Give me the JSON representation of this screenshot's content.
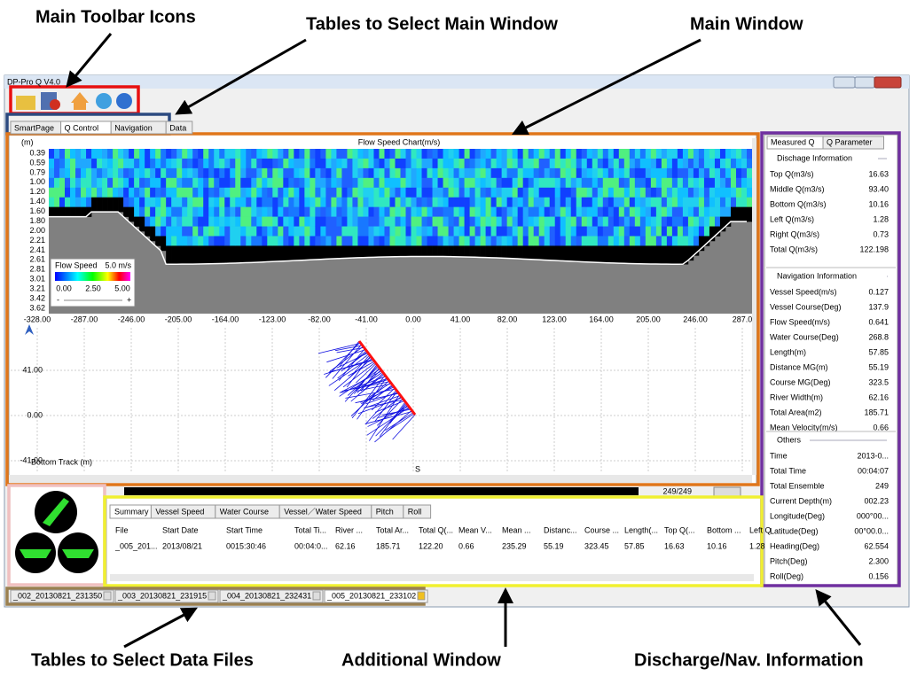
{
  "annotations": [
    "Main Toolbar Icons",
    "Tables to Select Main Window",
    "Main Window",
    "Tables to Select Data Files",
    "Additional Window",
    "Discharge/Nav. Information"
  ],
  "window": {
    "title": "DP-Pro Q V4.0"
  },
  "main_tabs": [
    "SmartPage",
    "Q Control",
    "Navigation",
    "Data"
  ],
  "flow_chart": {
    "title": "Flow Speed Chart(m/s)",
    "unit": "(m)",
    "depth_labels": [
      "0.39",
      "0.59",
      "0.79",
      "1.00",
      "1.20",
      "1.40",
      "1.60",
      "1.80",
      "2.00",
      "2.21",
      "2.41",
      "2.61",
      "2.81",
      "3.01",
      "3.21",
      "3.42",
      "3.62"
    ],
    "x_labels": [
      "-328.00",
      "-287.00",
      "-246.00",
      "-205.00",
      "-164.00",
      "-123.00",
      "-82.00",
      "-41.00",
      "0.00",
      "41.00",
      "82.00",
      "123.00",
      "164.00",
      "205.00",
      "246.00",
      "287.0"
    ],
    "colorbar": {
      "title": "Flow Speed",
      "max": "5.0 m/s",
      "ticks": [
        "0.00",
        "2.50",
        "5.00"
      ],
      "minus": "-",
      "plus": "+"
    }
  },
  "track_chart": {
    "y_labels": [
      "41.00",
      "0.00",
      "-41.00"
    ],
    "title": "Bottom Track (m)",
    "start": "S"
  },
  "progress": "249/249",
  "additional_tabs": [
    "Summary",
    "Vessel Speed",
    "Water Course",
    "Vessel／Water Speed",
    "Pitch",
    "Roll"
  ],
  "summary_table": {
    "columns": [
      "File",
      "Start Date",
      "Start Time",
      "Total Ti...",
      "River ...",
      "Total Ar...",
      "Total Q(...",
      "Mean V...",
      "Mean ...",
      "Distanc...",
      "Course ...",
      "Length(...",
      "Top Q(...",
      "Bottom ...",
      "Left Q"
    ],
    "rows": [
      [
        "_005_201...",
        "2013/08/21",
        "0015:30:46",
        "00:04:0...",
        "62.16",
        "185.71",
        "122.20",
        "0.66",
        "235.29",
        "55.19",
        "323.45",
        "57.85",
        "16.63",
        "10.16",
        "1.28"
      ]
    ]
  },
  "file_tabs": [
    "_002_20130821_231350",
    "_003_20130821_231915",
    "_004_20130821_232431",
    "_005_20130821_233102"
  ],
  "info_tabs": [
    "Measured Q",
    "Q Parameter"
  ],
  "info_sections": [
    {
      "title": "Dischage Information",
      "items": [
        {
          "label": "Top Q(m3/s)",
          "value": "16.63"
        },
        {
          "label": "Middle Q(m3/s)",
          "value": "93.40"
        },
        {
          "label": "Bottom Q(m3/s)",
          "value": "10.16"
        },
        {
          "label": "Left Q(m3/s)",
          "value": "1.28"
        },
        {
          "label": "Right Q(m3/s)",
          "value": "0.73"
        },
        {
          "label": "Total Q(m3/s)",
          "value": "122.198",
          "color": "#e02020"
        }
      ]
    },
    {
      "title": "Navigation Information",
      "items": [
        {
          "label": "Vessel Speed(m/s)",
          "value": "0.127"
        },
        {
          "label": "Vessel Course(Deg)",
          "value": "137.9"
        },
        {
          "label": "Flow Speed(m/s)",
          "value": "0.641"
        },
        {
          "label": "Water Course(Deg)",
          "value": "268.8"
        },
        {
          "label": "Length(m)",
          "value": "57.85"
        },
        {
          "label": "Distance MG(m)",
          "value": "55.19"
        },
        {
          "label": "Course MG(Deg)",
          "value": "323.5"
        },
        {
          "label": "River Width(m)",
          "value": "62.16"
        },
        {
          "label": "Total Area(m2)",
          "value": "185.71"
        },
        {
          "label": "Mean Velocity(m/s)",
          "value": "0.66"
        }
      ]
    },
    {
      "title": "Others",
      "items": [
        {
          "label": "Time",
          "value": "2013-0..."
        },
        {
          "label": "Total Time",
          "value": "00:04:07"
        },
        {
          "label": "Total Ensemble",
          "value": "249"
        },
        {
          "label": "Current Depth(m)",
          "value": "002.23"
        },
        {
          "label": "Longitude(Deg)",
          "value": "000°00..."
        },
        {
          "label": "Latitude(Deg)",
          "value": "00°00.0..."
        },
        {
          "label": "Heading(Deg)",
          "value": "62.554"
        },
        {
          "label": "Pitch(Deg)",
          "value": "2.300"
        },
        {
          "label": "Roll(Deg)",
          "value": "0.156"
        }
      ]
    }
  ]
}
